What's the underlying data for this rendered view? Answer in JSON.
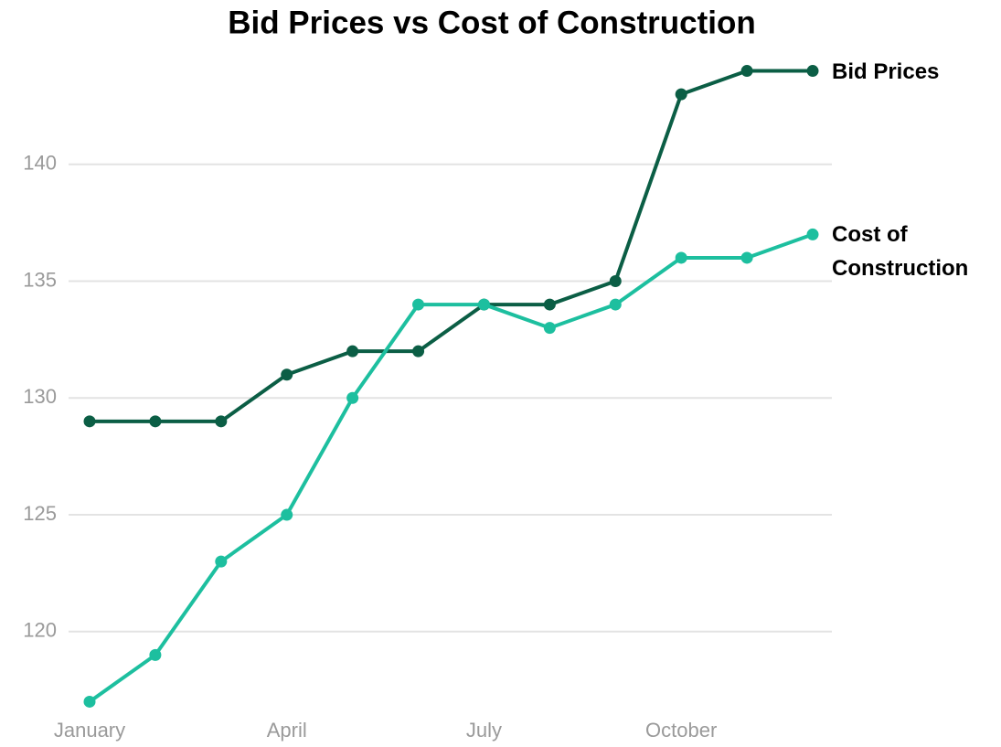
{
  "chart_data": {
    "type": "line",
    "title": "Bid Prices vs Cost of Construction",
    "categories": [
      "January",
      null,
      null,
      "April",
      null,
      null,
      "July",
      null,
      null,
      "October",
      null,
      null
    ],
    "series": [
      {
        "name": "Bid Prices",
        "color": "#0b5e45",
        "values": [
          129,
          129,
          129,
          131,
          132,
          132,
          134,
          134,
          135,
          143,
          144,
          144
        ]
      },
      {
        "name": "Cost of Construction",
        "color": "#1dbf9f",
        "values": [
          117,
          119,
          123,
          125,
          130,
          134,
          134,
          133,
          134,
          136,
          136,
          137
        ]
      }
    ],
    "ylim": [
      116,
      145
    ],
    "yticks": [
      120,
      125,
      130,
      135,
      140
    ],
    "grid": true
  }
}
